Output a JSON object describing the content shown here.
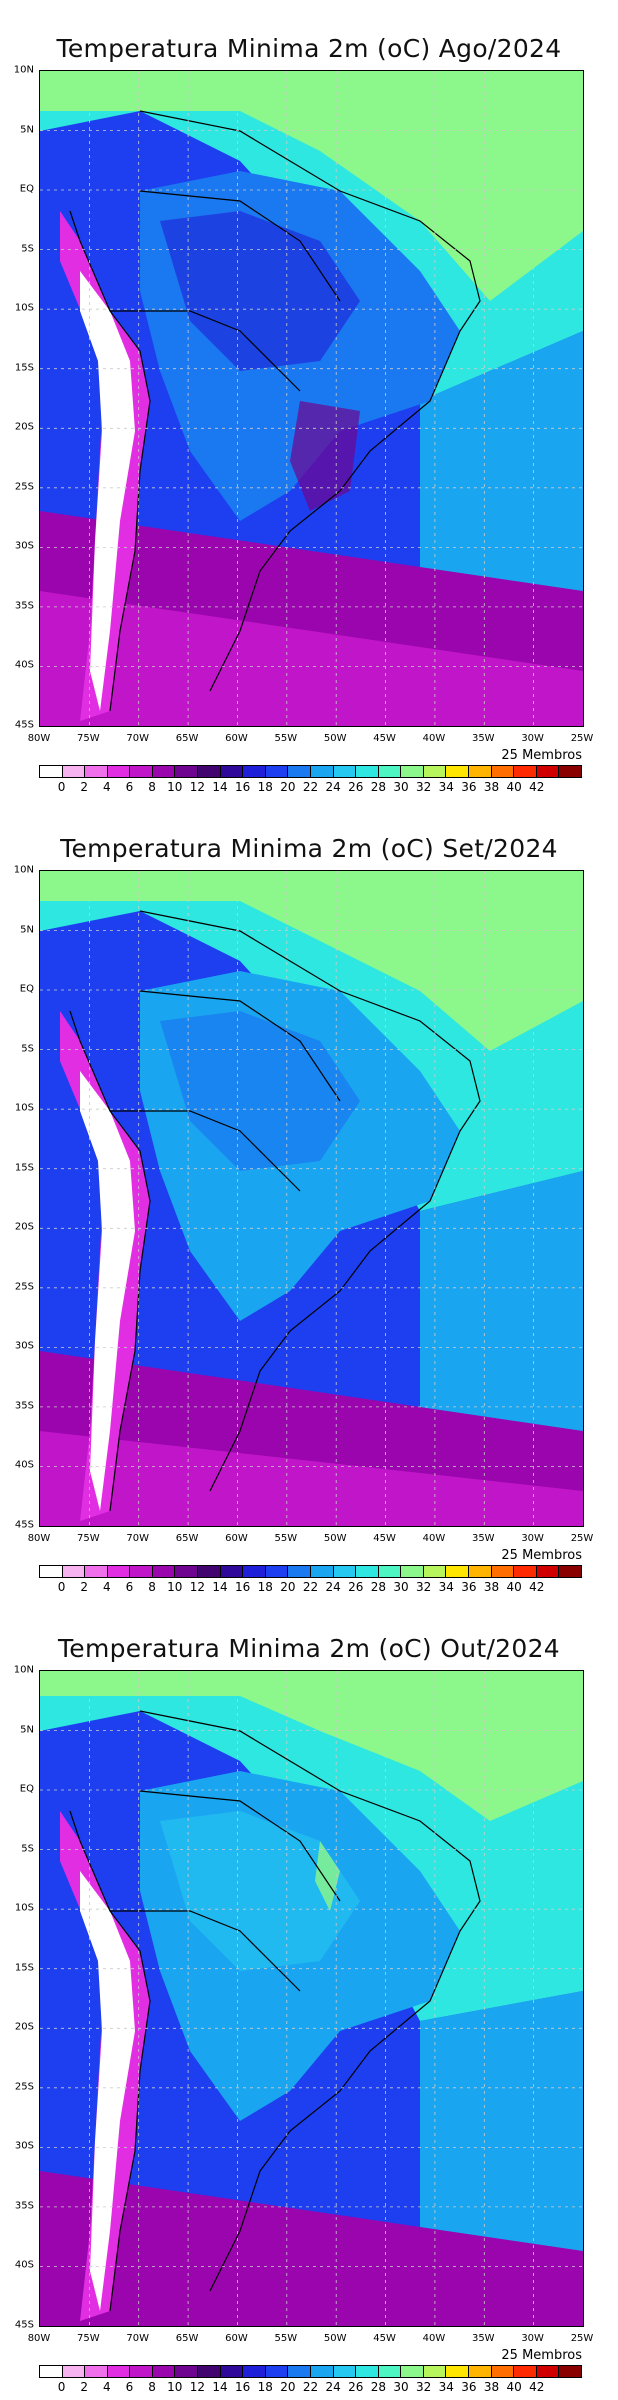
{
  "panels": [
    {
      "title": "Temperatura Minima 2m (oC) Ago/2024"
    },
    {
      "title": "Temperatura Minima 2m (oC) Set/2024"
    },
    {
      "title": "Temperatura Minima 2m (oC) Out/2024"
    }
  ],
  "members_label": "25 Membros",
  "lat_labels": [
    "10N",
    "5N",
    "EQ",
    "5S",
    "10S",
    "15S",
    "20S",
    "25S",
    "30S",
    "35S",
    "40S",
    "45S"
  ],
  "lon_labels": [
    "80W",
    "75W",
    "70W",
    "65W",
    "60W",
    "55W",
    "50W",
    "45W",
    "40W",
    "35W",
    "30W",
    "25W"
  ],
  "colorbar": {
    "ticks": [
      "0",
      "2",
      "4",
      "6",
      "8",
      "10",
      "12",
      "14",
      "16",
      "18",
      "20",
      "22",
      "24",
      "26",
      "28",
      "30",
      "32",
      "34",
      "36",
      "38",
      "40",
      "42"
    ],
    "colors": [
      "#ffffff",
      "#f7b3f0",
      "#ef70ea",
      "#e22ee2",
      "#c015c9",
      "#9a05ad",
      "#6f0490",
      "#42046f",
      "#2f0999",
      "#1f1ed9",
      "#1d3ff0",
      "#1a78f0",
      "#1aa5f0",
      "#25c8f0",
      "#2ee7e0",
      "#4df5c2",
      "#8cf78a",
      "#b6f55c",
      "#ffe600",
      "#ffb400",
      "#ff6e00",
      "#ff2a00",
      "#d10000",
      "#8a0000"
    ]
  }
}
